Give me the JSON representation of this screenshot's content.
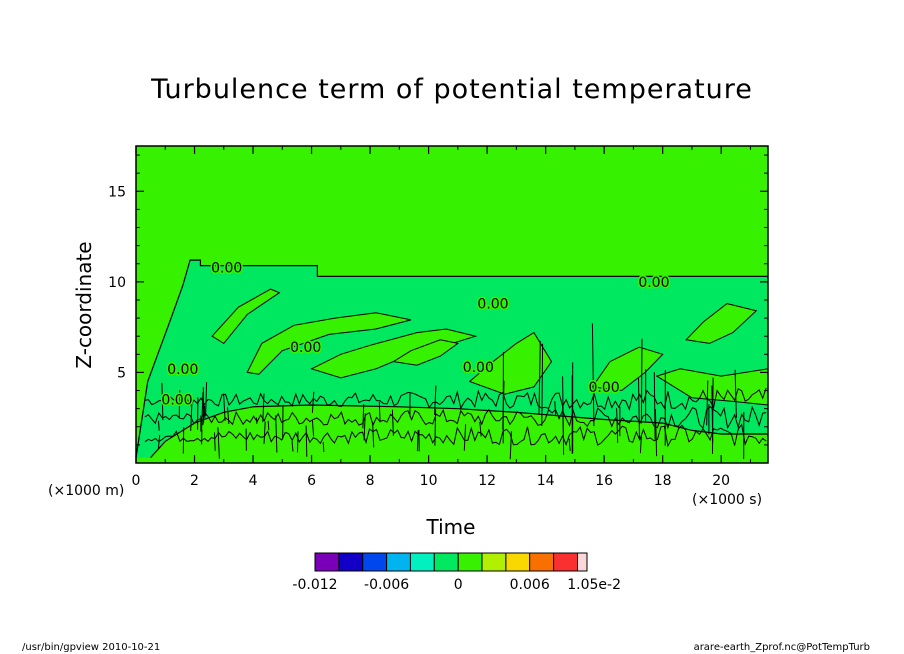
{
  "footer": {
    "left": "/usr/bin/gpview  2010-10-21",
    "right": "arare-earth_Zprof.nc@PotTempTurb"
  },
  "chart_data": {
    "type": "heatmap",
    "title": "Turbulence term of potential temperature",
    "xlabel": "Time",
    "ylabel": "Z-coordinate",
    "x_unit": "(×1000 s)",
    "y_unit": "(×1000 m)",
    "xlim": [
      0,
      21.6
    ],
    "ylim": [
      0,
      17.5
    ],
    "x_ticks": [
      0,
      2,
      4,
      6,
      8,
      10,
      12,
      14,
      16,
      18,
      20
    ],
    "y_ticks": [
      5,
      10,
      15
    ],
    "contour_labels": [
      {
        "text": "0.00",
        "x": 3.1,
        "y": 10.8
      },
      {
        "text": "0.00",
        "x": 17.7,
        "y": 10.0
      },
      {
        "text": "0.00",
        "x": 12.2,
        "y": 8.8
      },
      {
        "text": "0.00",
        "x": 5.8,
        "y": 6.4
      },
      {
        "text": "0.00",
        "x": 11.7,
        "y": 5.3
      },
      {
        "text": "0.00",
        "x": 1.6,
        "y": 5.2
      },
      {
        "text": "0.00",
        "x": 1.4,
        "y": 3.5
      },
      {
        "text": "0.00",
        "x": 16.0,
        "y": 4.2
      }
    ],
    "colorbar": {
      "levels": [
        -0.012,
        -0.01,
        -0.008,
        -0.006,
        -0.004,
        -0.002,
        0,
        0.002,
        0.004,
        0.006,
        0.008,
        0.01,
        0.0105
      ],
      "colors": [
        "#7a00b8",
        "#1200c8",
        "#0048ee",
        "#00b4f0",
        "#00f0c0",
        "#00e860",
        "#36f200",
        "#b0f000",
        "#f8d800",
        "#f87000",
        "#f83030",
        "#f8d8d8"
      ],
      "tick_labels": [
        "-0.012",
        "-0.006",
        "0",
        "0.006",
        "1.05e-2"
      ]
    },
    "field_colors": {
      "background": "#36f200",
      "negative_band": "#00e860",
      "contour": "#000000"
    }
  }
}
